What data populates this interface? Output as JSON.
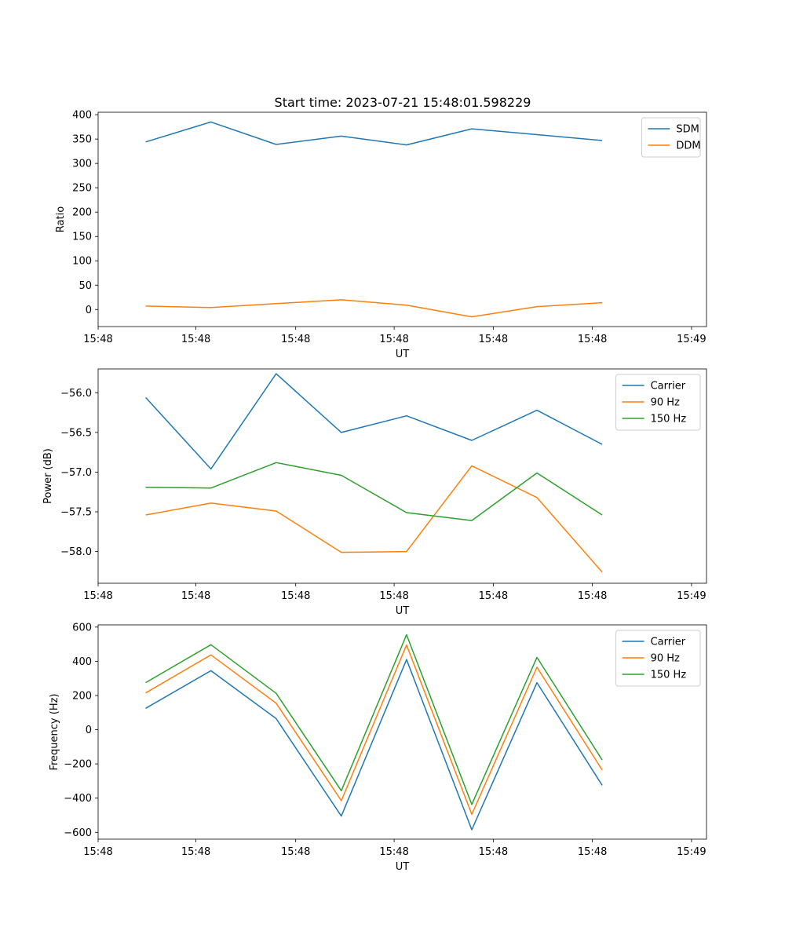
{
  "figure_title": "Start time: 2023-07-21 15:48:01.598229",
  "chart_data": [
    {
      "type": "line",
      "title": "Start time: 2023-07-21 15:48:01.598229",
      "xlabel": "UT",
      "ylabel": "Ratio",
      "x_index": [
        0,
        1,
        2,
        3,
        4,
        5,
        6,
        7
      ],
      "xlim": [
        -0.73,
        8.6
      ],
      "x_ticks": [
        -0.73,
        0.77,
        2.3,
        3.81,
        5.33,
        6.85,
        8.37
      ],
      "x_tick_labels": [
        "15:48",
        "15:48",
        "15:48",
        "15:48",
        "15:48",
        "15:48",
        "15:49"
      ],
      "ylim": [
        -35,
        405
      ],
      "y_ticks": [
        0,
        50,
        100,
        150,
        200,
        250,
        300,
        350,
        400
      ],
      "series": [
        {
          "name": "SDM",
          "color": "#1f77b4",
          "values": [
            344,
            385,
            339,
            356,
            338,
            371,
            359,
            347
          ]
        },
        {
          "name": "DDM",
          "color": "#ff7f0e",
          "values": [
            7,
            4,
            12,
            20,
            9,
            -15,
            6,
            14
          ]
        }
      ],
      "legend": "top-right"
    },
    {
      "type": "line",
      "title": "",
      "xlabel": "UT",
      "ylabel": "Power (dB)",
      "x_index": [
        0,
        1,
        2,
        3,
        4,
        5,
        6,
        7
      ],
      "xlim": [
        -0.73,
        8.6
      ],
      "x_ticks": [
        -0.73,
        0.77,
        2.3,
        3.81,
        5.33,
        6.85,
        8.37
      ],
      "x_tick_labels": [
        "15:48",
        "15:48",
        "15:48",
        "15:48",
        "15:48",
        "15:48",
        "15:49"
      ],
      "ylim": [
        -58.4,
        -55.7
      ],
      "y_ticks": [
        -58.0,
        -57.5,
        -57.0,
        -56.5,
        -56.0
      ],
      "y_tick_labels": [
        "−58.0",
        "−57.5",
        "−57.0",
        "−56.5",
        "−56.0"
      ],
      "series": [
        {
          "name": "Carrier",
          "color": "#1f77b4",
          "values": [
            -56.06,
            -56.96,
            -55.76,
            -56.5,
            -56.29,
            -56.6,
            -56.22,
            -56.65
          ]
        },
        {
          "name": "90 Hz",
          "color": "#ff7f0e",
          "values": [
            -57.54,
            -57.39,
            -57.49,
            -58.01,
            -58.0,
            -56.92,
            -57.32,
            -58.26
          ]
        },
        {
          "name": "150 Hz",
          "color": "#2ca02c",
          "values": [
            -57.19,
            -57.2,
            -56.88,
            -57.04,
            -57.51,
            -57.61,
            -57.01,
            -57.54
          ]
        }
      ],
      "legend": "top-right"
    },
    {
      "type": "line",
      "title": "",
      "xlabel": "UT",
      "ylabel": "Frequency (Hz)",
      "x_index": [
        0,
        1,
        2,
        3,
        4,
        5,
        6,
        7
      ],
      "xlim": [
        -0.73,
        8.6
      ],
      "x_ticks": [
        -0.73,
        0.77,
        2.3,
        3.81,
        5.33,
        6.85,
        8.37
      ],
      "x_tick_labels": [
        "15:48",
        "15:48",
        "15:48",
        "15:48",
        "15:48",
        "15:48",
        "15:49"
      ],
      "ylim": [
        -640,
        613
      ],
      "y_ticks": [
        -600,
        -400,
        -200,
        0,
        200,
        400,
        600
      ],
      "y_tick_labels": [
        "−600",
        "−400",
        "−200",
        "0",
        "200",
        "400",
        "600"
      ],
      "series": [
        {
          "name": "Carrier",
          "color": "#1f77b4",
          "values": [
            125,
            345,
            65,
            -505,
            410,
            -585,
            275,
            -325
          ]
        },
        {
          "name": "90 Hz",
          "color": "#ff7f0e",
          "values": [
            215,
            437,
            155,
            -415,
            495,
            -495,
            365,
            -235
          ]
        },
        {
          "name": "150 Hz",
          "color": "#2ca02c",
          "values": [
            275,
            497,
            213,
            -357,
            555,
            -437,
            423,
            -177
          ]
        }
      ],
      "legend": "top-right"
    }
  ]
}
